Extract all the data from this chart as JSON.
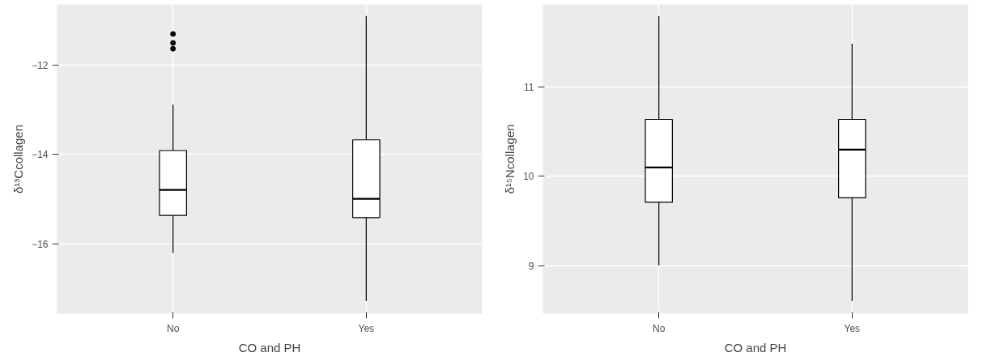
{
  "chart_data": [
    {
      "type": "box",
      "xlabel": "CO and PH",
      "ylabel": "δ¹³Ccollagen",
      "categories": [
        "No",
        "Yes"
      ],
      "ylim": [
        -17.56,
        -10.64
      ],
      "yticks": [
        -16,
        -14,
        -12
      ],
      "grid": true,
      "boxes": [
        {
          "low": -16.2,
          "q1": -15.36,
          "median": -14.79,
          "q3": -13.91,
          "high": -12.88,
          "outliers": [
            -11.3,
            -11.5,
            -11.63
          ]
        },
        {
          "low": -17.28,
          "q1": -15.41,
          "median": -14.99,
          "q3": -13.67,
          "high": -10.9
        }
      ]
    },
    {
      "type": "box",
      "xlabel": "CO and PH",
      "ylabel": "δ¹⁵Ncollagen",
      "categories": [
        "No",
        "Yes"
      ],
      "ylim": [
        8.46,
        11.93
      ],
      "yticks": [
        9,
        10,
        11
      ],
      "grid": true,
      "boxes": [
        {
          "low": 9.0,
          "q1": 9.71,
          "median": 10.1,
          "q3": 10.64,
          "high": 11.8
        },
        {
          "low": 8.6,
          "q1": 9.76,
          "median": 10.3,
          "q3": 10.64,
          "high": 11.49
        }
      ]
    }
  ]
}
